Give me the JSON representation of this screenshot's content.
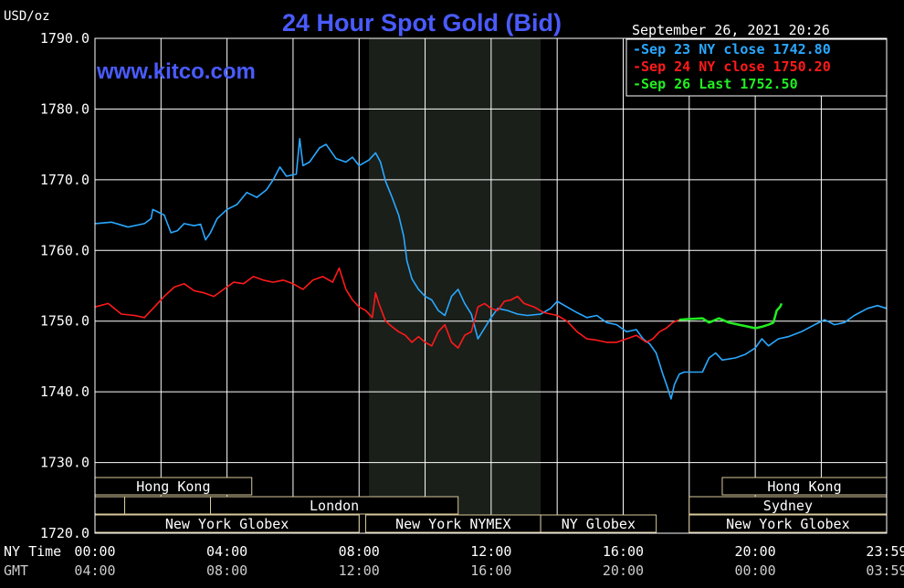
{
  "header": {
    "unit": "USD/oz",
    "title": "24 Hour Spot Gold (Bid)",
    "website": "www.kitco.com",
    "timestamp": "September 26, 2021 20:26"
  },
  "legend": [
    {
      "text": "Sep 23 NY close 1742.80",
      "color": "#29a8ff"
    },
    {
      "text": "Sep 24 NY close 1750.20",
      "color": "#ff1a1a"
    },
    {
      "text": "Sep 26 Last 1752.50",
      "color": "#22ee22"
    }
  ],
  "footer": {
    "ny_label": "NY Time",
    "gmt_label": "GMT"
  },
  "sessions": {
    "row1": [
      {
        "label": "Hong Kong",
        "start": -0.3,
        "end": 4.75
      },
      {
        "label": "Hong Kong",
        "start": 19.0,
        "end": 24.0
      }
    ],
    "row2": [
      {
        "label": "",
        "start": -0.3,
        "end": 0.9
      },
      {
        "label": "",
        "start": 0.9,
        "end": 3.5
      },
      {
        "label": "London",
        "start": 3.5,
        "end": 11.0
      },
      {
        "label": "Sydney",
        "start": 18.0,
        "end": 24.0
      }
    ],
    "row3": [
      {
        "label": "New York Globex",
        "start": -0.3,
        "end": 8.0
      },
      {
        "label": "New York NYMEX",
        "start": 8.2,
        "end": 13.5
      },
      {
        "label": "NY Globex",
        "start": 13.5,
        "end": 17.0
      },
      {
        "label": "New York Globex",
        "start": 18.0,
        "end": 24.0
      }
    ]
  },
  "chart_data": {
    "type": "line",
    "title": "24 Hour Spot Gold (Bid)",
    "ylabel": "USD/oz",
    "ylim": [
      1720,
      1790
    ],
    "yticks": [
      "1720.0",
      "1730.0",
      "1740.0",
      "1750.0",
      "1760.0",
      "1770.0",
      "1780.0",
      "1790.0"
    ],
    "xlim": [
      0,
      23.98
    ],
    "xticks": [
      {
        "x": 0,
        "ny": "00:00",
        "gmt": "04:00"
      },
      {
        "x": 4,
        "ny": "04:00",
        "gmt": "08:00"
      },
      {
        "x": 8,
        "ny": "08:00",
        "gmt": "12:00"
      },
      {
        "x": 12,
        "ny": "12:00",
        "gmt": "16:00"
      },
      {
        "x": 16,
        "ny": "16:00",
        "gmt": "20:00"
      },
      {
        "x": 20,
        "ny": "20:00",
        "gmt": "00:00"
      },
      {
        "x": 23.98,
        "ny": "23:59",
        "gmt": "03:59"
      }
    ],
    "grid": true,
    "shaded_range": [
      8.3,
      13.5
    ],
    "series": [
      {
        "name": "Sep 23 NY close 1742.80",
        "color": "#29a8ff",
        "points": [
          [
            0,
            1763.8
          ],
          [
            0.5,
            1764.0
          ],
          [
            1.0,
            1763.3
          ],
          [
            1.5,
            1763.8
          ],
          [
            1.7,
            1764.5
          ],
          [
            1.75,
            1765.8
          ],
          [
            2.1,
            1765.0
          ],
          [
            2.3,
            1762.5
          ],
          [
            2.5,
            1762.8
          ],
          [
            2.7,
            1763.8
          ],
          [
            3.0,
            1763.5
          ],
          [
            3.2,
            1763.7
          ],
          [
            3.35,
            1761.5
          ],
          [
            3.5,
            1762.5
          ],
          [
            3.7,
            1764.5
          ],
          [
            4.0,
            1765.8
          ],
          [
            4.3,
            1766.5
          ],
          [
            4.6,
            1768.2
          ],
          [
            4.9,
            1767.5
          ],
          [
            5.2,
            1768.6
          ],
          [
            5.4,
            1770.0
          ],
          [
            5.6,
            1771.8
          ],
          [
            5.8,
            1770.5
          ],
          [
            6.1,
            1770.8
          ],
          [
            6.2,
            1775.8
          ],
          [
            6.3,
            1772.0
          ],
          [
            6.5,
            1772.5
          ],
          [
            6.8,
            1774.5
          ],
          [
            7.0,
            1775.0
          ],
          [
            7.3,
            1773.0
          ],
          [
            7.6,
            1772.5
          ],
          [
            7.8,
            1773.2
          ],
          [
            8.0,
            1772.0
          ],
          [
            8.3,
            1772.8
          ],
          [
            8.5,
            1773.8
          ],
          [
            8.65,
            1772.5
          ],
          [
            8.8,
            1769.8
          ],
          [
            9.0,
            1767.5
          ],
          [
            9.2,
            1765.0
          ],
          [
            9.35,
            1762.0
          ],
          [
            9.45,
            1758.5
          ],
          [
            9.6,
            1756.0
          ],
          [
            9.8,
            1754.5
          ],
          [
            10.0,
            1753.5
          ],
          [
            10.2,
            1753.0
          ],
          [
            10.4,
            1751.5
          ],
          [
            10.6,
            1750.8
          ],
          [
            10.8,
            1753.5
          ],
          [
            11.0,
            1754.5
          ],
          [
            11.2,
            1752.5
          ],
          [
            11.4,
            1751.0
          ],
          [
            11.6,
            1747.5
          ],
          [
            11.8,
            1749.0
          ],
          [
            12.0,
            1750.5
          ],
          [
            12.2,
            1751.8
          ],
          [
            12.5,
            1751.5
          ],
          [
            12.8,
            1751.0
          ],
          [
            13.1,
            1750.8
          ],
          [
            13.5,
            1751.0
          ],
          [
            13.8,
            1751.8
          ],
          [
            14.0,
            1752.8
          ],
          [
            14.3,
            1752.0
          ],
          [
            14.6,
            1751.2
          ],
          [
            14.9,
            1750.5
          ],
          [
            15.2,
            1750.8
          ],
          [
            15.5,
            1749.8
          ],
          [
            15.8,
            1749.5
          ],
          [
            16.1,
            1748.5
          ],
          [
            16.4,
            1748.8
          ],
          [
            16.6,
            1747.5
          ],
          [
            16.8,
            1746.8
          ],
          [
            17.0,
            1745.5
          ],
          [
            17.2,
            1742.5
          ],
          [
            17.35,
            1740.5
          ],
          [
            17.45,
            1739.0
          ],
          [
            17.55,
            1741.0
          ],
          [
            17.7,
            1742.5
          ],
          [
            17.85,
            1742.8
          ],
          [
            18.4,
            1742.8
          ],
          [
            18.6,
            1744.8
          ],
          [
            18.8,
            1745.5
          ],
          [
            19.0,
            1744.5
          ],
          [
            19.4,
            1744.8
          ],
          [
            19.7,
            1745.3
          ],
          [
            20.0,
            1746.2
          ],
          [
            20.2,
            1747.5
          ],
          [
            20.4,
            1746.5
          ],
          [
            20.7,
            1747.5
          ],
          [
            21.0,
            1747.8
          ],
          [
            21.4,
            1748.5
          ],
          [
            21.8,
            1749.5
          ],
          [
            22.1,
            1750.2
          ],
          [
            22.4,
            1749.5
          ],
          [
            22.7,
            1749.8
          ],
          [
            23.0,
            1750.8
          ],
          [
            23.4,
            1751.8
          ],
          [
            23.7,
            1752.2
          ],
          [
            23.98,
            1751.8
          ]
        ]
      },
      {
        "name": "Sep 24 NY close 1750.20",
        "color": "#ff1a1a",
        "points": [
          [
            0,
            1752.0
          ],
          [
            0.4,
            1752.5
          ],
          [
            0.8,
            1751.0
          ],
          [
            1.2,
            1750.8
          ],
          [
            1.5,
            1750.5
          ],
          [
            1.8,
            1752.0
          ],
          [
            2.1,
            1753.5
          ],
          [
            2.4,
            1754.8
          ],
          [
            2.7,
            1755.3
          ],
          [
            3.0,
            1754.3
          ],
          [
            3.3,
            1754.0
          ],
          [
            3.6,
            1753.5
          ],
          [
            3.9,
            1754.5
          ],
          [
            4.2,
            1755.5
          ],
          [
            4.5,
            1755.3
          ],
          [
            4.8,
            1756.3
          ],
          [
            5.1,
            1755.8
          ],
          [
            5.4,
            1755.5
          ],
          [
            5.7,
            1755.8
          ],
          [
            6.0,
            1755.3
          ],
          [
            6.3,
            1754.5
          ],
          [
            6.6,
            1755.8
          ],
          [
            6.9,
            1756.3
          ],
          [
            7.2,
            1755.5
          ],
          [
            7.4,
            1757.5
          ],
          [
            7.6,
            1754.5
          ],
          [
            7.8,
            1753.0
          ],
          [
            8.0,
            1752.0
          ],
          [
            8.2,
            1751.5
          ],
          [
            8.4,
            1750.5
          ],
          [
            8.5,
            1754.0
          ],
          [
            8.6,
            1752.5
          ],
          [
            8.8,
            1750.0
          ],
          [
            9.0,
            1749.2
          ],
          [
            9.2,
            1748.5
          ],
          [
            9.4,
            1748.0
          ],
          [
            9.6,
            1747.0
          ],
          [
            9.8,
            1747.8
          ],
          [
            10.0,
            1747.0
          ],
          [
            10.2,
            1746.5
          ],
          [
            10.4,
            1748.5
          ],
          [
            10.6,
            1749.5
          ],
          [
            10.8,
            1747.0
          ],
          [
            11.0,
            1746.2
          ],
          [
            11.2,
            1748.0
          ],
          [
            11.4,
            1748.5
          ],
          [
            11.6,
            1752.0
          ],
          [
            11.8,
            1752.5
          ],
          [
            12.0,
            1751.8
          ],
          [
            12.2,
            1751.5
          ],
          [
            12.4,
            1752.8
          ],
          [
            12.6,
            1753.0
          ],
          [
            12.8,
            1753.5
          ],
          [
            13.0,
            1752.5
          ],
          [
            13.3,
            1752.0
          ],
          [
            13.6,
            1751.2
          ],
          [
            14.0,
            1750.8
          ],
          [
            14.3,
            1750.0
          ],
          [
            14.6,
            1748.5
          ],
          [
            14.9,
            1747.5
          ],
          [
            15.2,
            1747.3
          ],
          [
            15.5,
            1747.0
          ],
          [
            15.8,
            1747.0
          ],
          [
            16.1,
            1747.5
          ],
          [
            16.4,
            1748.0
          ],
          [
            16.7,
            1747.0
          ],
          [
            16.9,
            1747.5
          ],
          [
            17.1,
            1748.5
          ],
          [
            17.3,
            1749.0
          ],
          [
            17.5,
            1749.8
          ],
          [
            17.7,
            1750.2
          ]
        ]
      },
      {
        "name": "Sep 26 Last 1752.50",
        "color": "#22ee22",
        "points": [
          [
            17.7,
            1750.2
          ],
          [
            18.0,
            1750.3
          ],
          [
            18.4,
            1750.4
          ],
          [
            18.6,
            1749.8
          ],
          [
            18.9,
            1750.4
          ],
          [
            19.2,
            1749.8
          ],
          [
            19.5,
            1749.5
          ],
          [
            19.8,
            1749.2
          ],
          [
            20.0,
            1749.0
          ],
          [
            20.2,
            1749.2
          ],
          [
            20.4,
            1749.5
          ],
          [
            20.55,
            1749.8
          ],
          [
            20.65,
            1751.5
          ],
          [
            20.75,
            1752.0
          ],
          [
            20.8,
            1752.5
          ]
        ]
      }
    ]
  }
}
